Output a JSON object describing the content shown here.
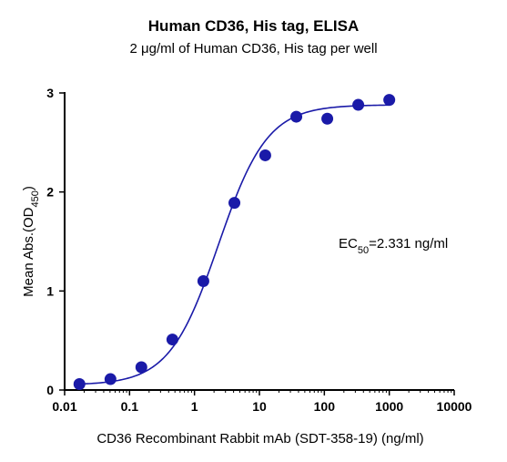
{
  "chart_data": {
    "type": "scatter",
    "title": "Human CD36, His tag, ELISA",
    "subtitle": "2 μg/ml of Human CD36, His tag per well",
    "xlabel": "CD36 Recombinant Rabbit mAb (SDT-358-19) (ng/ml)",
    "ylabel": {
      "main": "Mean Abs.(OD",
      "sub": "450",
      "end": ")"
    },
    "x_scale": "log",
    "xlim": [
      0.01,
      10000
    ],
    "ylim": [
      0,
      3
    ],
    "x_ticks": [
      "0.01",
      "0.1",
      "1",
      "10",
      "100",
      "1000",
      "10000"
    ],
    "y_ticks": [
      "0",
      "1",
      "2",
      "3"
    ],
    "annotation": {
      "prefix": "EC",
      "sub": "50",
      "value": "=2.331 ng/ml"
    },
    "grid": false,
    "series": [
      {
        "x": [
          0.0169,
          0.0508,
          0.152,
          0.457,
          1.37,
          4.12,
          12.3,
          37.0,
          111,
          333,
          1000
        ],
        "y": [
          0.06,
          0.11,
          0.23,
          0.51,
          1.1,
          1.89,
          2.37,
          2.76,
          2.74,
          2.88,
          2.93
        ],
        "fit": {
          "bottom": 0.05,
          "top": 2.88,
          "ec50": 2.331,
          "hill": 1.15
        },
        "color": "#1a1aa8"
      }
    ]
  }
}
